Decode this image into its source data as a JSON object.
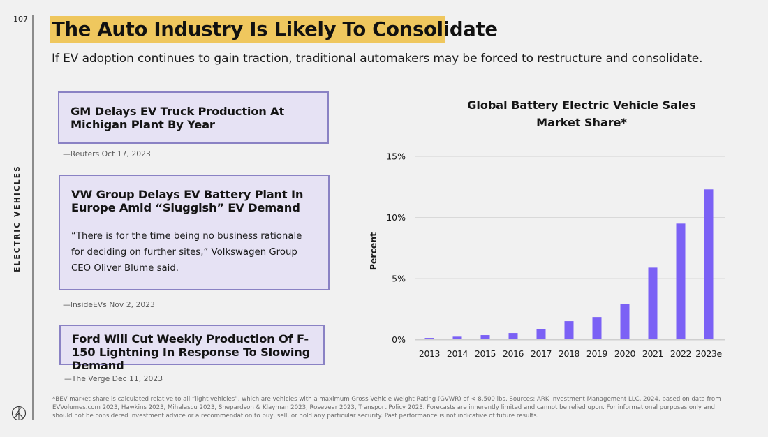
{
  "page": {
    "page_number": "107",
    "section_label": "ELECTRIC VEHICLES",
    "logo_icon": "ark-logo-icon"
  },
  "header": {
    "title": "The Auto Industry Is Likely To Consolidate",
    "subtitle": "If EV adoption continues to gain traction, traditional automakers may be forced to restructure and consolidate.",
    "highlight_color": "#efc75e"
  },
  "news": [
    {
      "headline": "GM Delays EV Truck Production At Michigan Plant By Year",
      "quote": "",
      "source": "—Reuters Oct 17, 2023"
    },
    {
      "headline": "VW Group Delays EV Battery Plant In Europe Amid “Sluggish” EV Demand",
      "quote": "“There is for the time being no business rationale for deciding on further sites,” Volkswagen Group CEO Oliver Blume said.",
      "source": "—InsideEVs Nov 2, 2023"
    },
    {
      "headline": "Ford Will Cut Weekly Production Of F-150 Lightning In Response To Slowing Demand",
      "quote": "",
      "source": "—The Verge Dec 11, 2023"
    }
  ],
  "chart_data": {
    "type": "bar",
    "title": "Global Battery Electric Vehicle Sales Market Share*",
    "title_lines": [
      "Global Battery Electric Vehicle Sales",
      "Market Share*"
    ],
    "xlabel": "",
    "ylabel": "Percent",
    "categories": [
      "2013",
      "2014",
      "2015",
      "2016",
      "2017",
      "2018",
      "2019",
      "2020",
      "2021",
      "2022",
      "2023e"
    ],
    "values": [
      0.15,
      0.25,
      0.38,
      0.55,
      0.88,
      1.52,
      1.86,
      2.9,
      5.9,
      9.5,
      12.3
    ],
    "ylim": [
      0,
      15
    ],
    "yticks": [
      0,
      5,
      10,
      15
    ],
    "ytick_labels": [
      "0%",
      "5%",
      "10%",
      "15%"
    ],
    "grid": true,
    "bar_color": "#7b61f5",
    "legend": "none"
  },
  "footnote": "*BEV market share is calculated relative to all “light vehicles”, which are vehicles with a maximum Gross Vehicle Weight Rating (GVWR) of < 8,500 lbs. Sources: ARK Investment Management LLC, 2024, based on data from EVVolumes.com 2023, Hawkins 2023, Mihalascu 2023, Shepardson & Klayman 2023, Rosevear 2023, Transport Policy 2023. Forecasts are inherently limited and cannot be relied upon. For informational purposes only and should not be considered investment advice or a recommendation to buy, sell, or hold any particular security. Past performance is not indicative of future results."
}
